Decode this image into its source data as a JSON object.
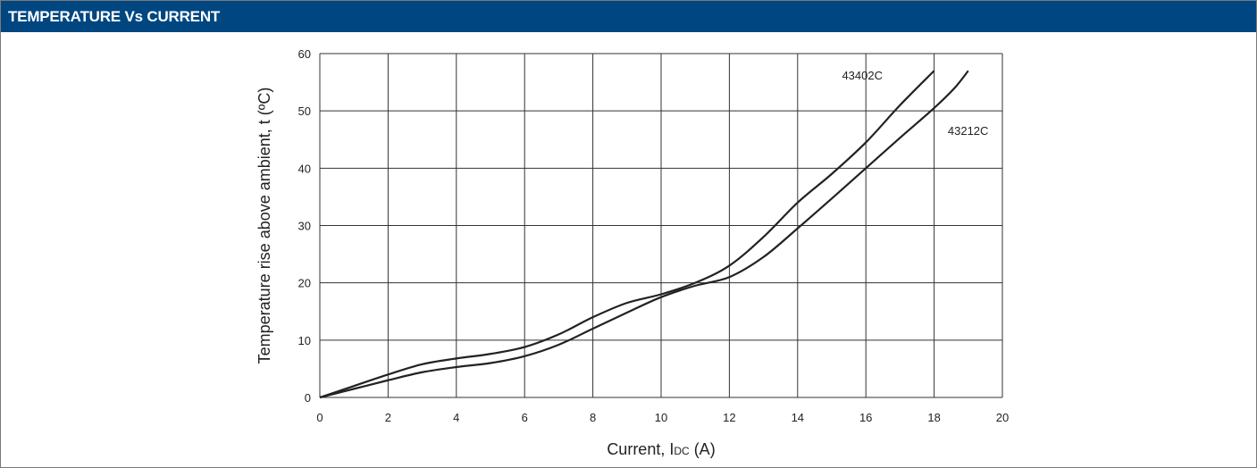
{
  "header": {
    "title": "TEMPERATURE Vs CURRENT"
  },
  "colors": {
    "header_bg": "#004680",
    "line": "#222222",
    "grid": "#333333"
  },
  "chart_data": {
    "type": "line",
    "title": "",
    "xlabel": "Current, IDC (A)",
    "xlabel_main": "Current, I",
    "xlabel_sub": "DC",
    "xlabel_unit": " (A)",
    "ylabel": "Temperature rise above ambient, t (ºC)",
    "xlim": [
      0,
      20
    ],
    "ylim": [
      0,
      60
    ],
    "xticks": [
      0,
      2,
      4,
      6,
      8,
      10,
      12,
      14,
      16,
      18,
      20
    ],
    "yticks": [
      0,
      10,
      20,
      30,
      40,
      50,
      60
    ],
    "grid": true,
    "series": [
      {
        "name": "43402C",
        "x": [
          0,
          1,
          2,
          3,
          4,
          5,
          6,
          7,
          8,
          9,
          10,
          11,
          12,
          13,
          14,
          15,
          16,
          17,
          18
        ],
        "y": [
          0,
          2,
          4,
          5.8,
          6.8,
          7.6,
          8.8,
          11,
          14,
          16.5,
          18,
          20,
          23,
          28,
          34,
          39,
          44.5,
          51,
          57
        ]
      },
      {
        "name": "43212C",
        "x": [
          0,
          1,
          2,
          3,
          4,
          5,
          6,
          7,
          8,
          9,
          10,
          11,
          12,
          13,
          14,
          15,
          16,
          17,
          18,
          18.6,
          19
        ],
        "y": [
          0,
          1.5,
          3,
          4.4,
          5.3,
          6,
          7.2,
          9.2,
          12,
          14.8,
          17.5,
          19.5,
          21,
          24.5,
          29.5,
          34.7,
          40,
          45.3,
          50.5,
          54,
          57
        ]
      }
    ]
  }
}
